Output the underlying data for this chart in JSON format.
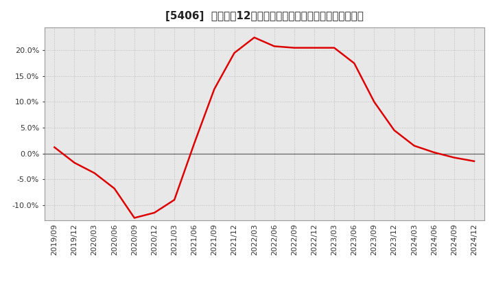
{
  "title": "[5406]  売上高の12か月移動合計の対前年同期増減率の推移",
  "line_color": "#dd0000",
  "background_color": "#ffffff",
  "plot_bg_color": "#e8e8e8",
  "grid_color": "#bbbbbb",
  "zero_line_color": "#666666",
  "dates": [
    "2019/09",
    "2019/12",
    "2020/03",
    "2020/06",
    "2020/09",
    "2020/12",
    "2021/03",
    "2021/06",
    "2021/09",
    "2021/12",
    "2022/03",
    "2022/06",
    "2022/09",
    "2022/12",
    "2023/03",
    "2023/06",
    "2023/09",
    "2023/12",
    "2024/03",
    "2024/06",
    "2024/09",
    "2024/12"
  ],
  "values": [
    1.2,
    -1.8,
    -3.8,
    -6.8,
    -12.5,
    -11.5,
    -9.0,
    2.0,
    12.5,
    19.5,
    22.5,
    20.8,
    20.5,
    20.5,
    20.5,
    17.5,
    10.0,
    4.5,
    1.5,
    0.2,
    -0.8,
    -1.5
  ],
  "ylim": [
    -13.0,
    24.5
  ],
  "yticks": [
    -10.0,
    -5.0,
    0.0,
    5.0,
    10.0,
    15.0,
    20.0
  ],
  "title_fontsize": 11,
  "tick_fontsize": 8
}
